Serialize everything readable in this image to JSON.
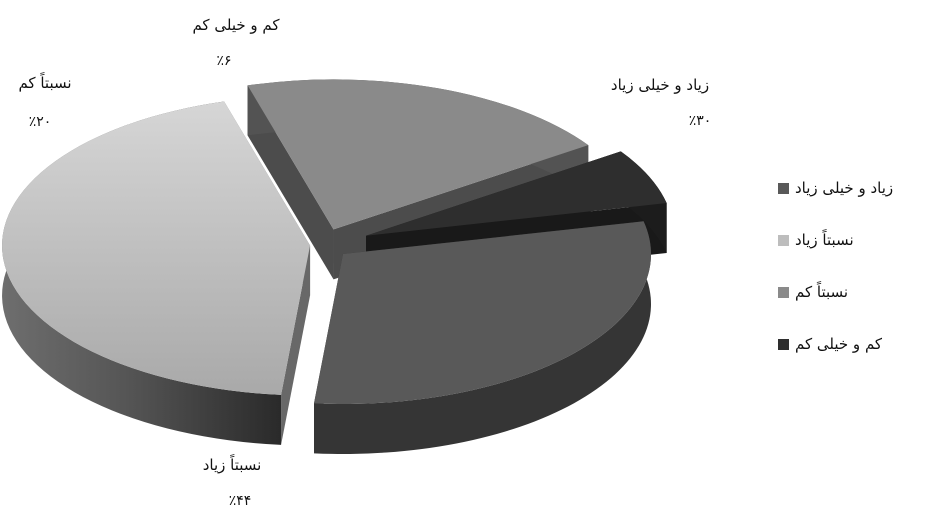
{
  "chart_data": {
    "type": "pie",
    "style": "3d-exploded",
    "categories": [
      "زیاد و خیلی زیاد",
      "نسبتاً زیاد",
      "نسبتاً کم",
      "کم و خیلی کم"
    ],
    "values": [
      30,
      44,
      20,
      6
    ],
    "value_labels": [
      "٪۳۰",
      "٪۴۴",
      "٪۲۰",
      "٪۶"
    ],
    "colors": [
      "#595959",
      "#bdbdbd",
      "#8a8a8a",
      "#2e2e2e"
    ],
    "title": "",
    "legend": {
      "position": "right",
      "items": [
        "زیاد و خیلی زیاد",
        "نسبتاً زیاد",
        "نسبتاً کم",
        "کم و خیلی کم"
      ]
    }
  }
}
